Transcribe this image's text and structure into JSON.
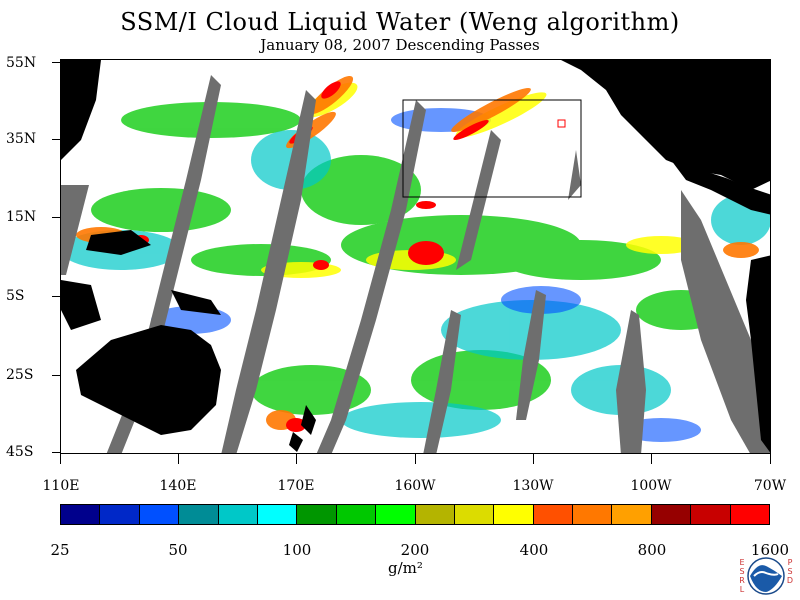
{
  "title": "SSM/I Cloud Liquid Water (Weng algorithm)",
  "subtitle": "January 08, 2007  Descending Passes",
  "lat_labels": [
    "55N",
    "35N",
    "15N",
    "5S",
    "25S",
    "45S"
  ],
  "lon_labels": [
    "110E",
    "140E",
    "170E",
    "160W",
    "130W",
    "100W",
    "70W"
  ],
  "colorbar": {
    "colors": [
      "#00008c",
      "#0028c8",
      "#0050ff",
      "#008c96",
      "#00c8c8",
      "#00ffff",
      "#009600",
      "#00c800",
      "#00ff00",
      "#b4b400",
      "#dcdc00",
      "#ffff00",
      "#ff5000",
      "#ff7800",
      "#ffa000",
      "#960000",
      "#c80000",
      "#ff0000"
    ],
    "labels": [
      "25",
      "50",
      "100",
      "200",
      "400",
      "800",
      "1600"
    ],
    "unit": "g/m²"
  },
  "colors": {
    "land": "#000000",
    "no_data_swath": "#6e6e6e",
    "ocean_clear": "#ffffff",
    "accent_red": "#ff0000"
  },
  "logo": {
    "name": "noaa-logo",
    "left_letters": "ESRL",
    "right_letters": "PSD",
    "center_text": "NOAA"
  }
}
